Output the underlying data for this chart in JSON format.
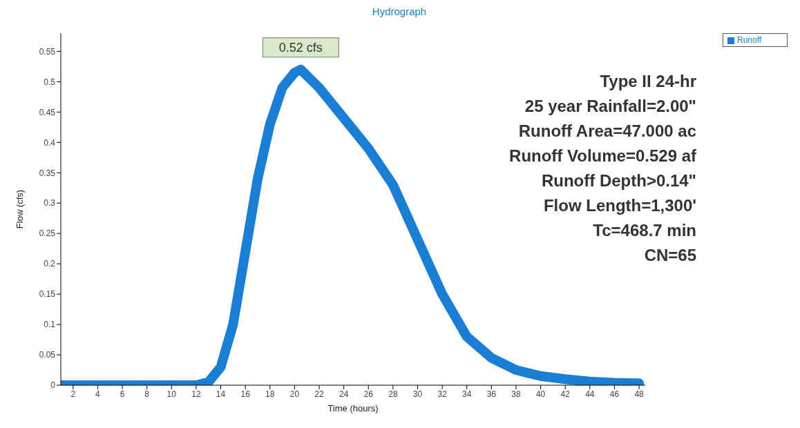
{
  "chart_data": {
    "type": "line",
    "title": "Hydrograph",
    "xlabel": "Time (hours)",
    "ylabel": "Flow (cfs)",
    "x": [
      1,
      12,
      13,
      14,
      15,
      16,
      17,
      18,
      19,
      20,
      20.5,
      22,
      24,
      26,
      28,
      30,
      32,
      34,
      36,
      38,
      40,
      42,
      44,
      46,
      48
    ],
    "series": [
      {
        "name": "Runoff",
        "color": "#1a7fd4",
        "values": [
          0,
          0,
          0.005,
          0.03,
          0.1,
          0.22,
          0.34,
          0.43,
          0.49,
          0.515,
          0.52,
          0.49,
          0.44,
          0.39,
          0.33,
          0.24,
          0.15,
          0.08,
          0.045,
          0.025,
          0.015,
          0.01,
          0.006,
          0.004,
          0.003
        ]
      }
    ],
    "xlim": [
      1,
      48.5
    ],
    "xticks": [
      2,
      4,
      6,
      8,
      10,
      12,
      14,
      16,
      18,
      20,
      22,
      24,
      26,
      28,
      30,
      32,
      34,
      36,
      38,
      40,
      42,
      44,
      46,
      48
    ],
    "ylim": [
      0,
      0.58
    ],
    "yticks": [
      0,
      0.05,
      0.1,
      0.15,
      0.2,
      0.25,
      0.3,
      0.35,
      0.4,
      0.45,
      0.5,
      0.55
    ],
    "annotations": [
      {
        "text": "0.52 cfs",
        "x": 20.5,
        "y": 0.52
      },
      "Type II 24-hr",
      "25 year Rainfall=2.00\"",
      "Runoff Area=47.000 ac",
      "Runoff Volume=0.529 af",
      "Runoff Depth>0.14\"",
      "Flow Length=1,300'",
      "Tc=468.7 min",
      "CN=65"
    ],
    "grid": false,
    "legend": "top right",
    "marker": "none",
    "line_style": "solid"
  }
}
